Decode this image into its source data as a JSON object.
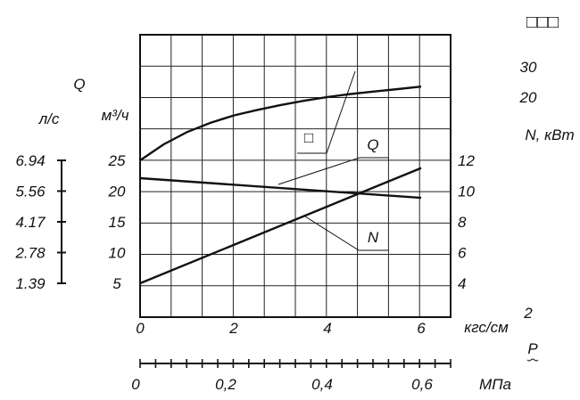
{
  "chart_data": {
    "type": "line",
    "top_right_mark": "□□□",
    "x_axis": {
      "label_kgf": "кгс/см",
      "label_kgf_sup": "2",
      "symbol": "P",
      "ticks_kgf": [
        "0",
        "2",
        "4",
        "6"
      ],
      "range_kgf": [
        0,
        6.5
      ],
      "label_mpa": "МПа",
      "ticks_mpa": [
        "0",
        "0,2",
        "0,4",
        "0,6"
      ]
    },
    "left_axis": {
      "label_Q": "Q",
      "unit_m3h": "м³/ч",
      "unit_ls": "л/с",
      "ticks_m3h": [
        "25",
        "20",
        "15",
        "10",
        "5"
      ],
      "ticks_ls": [
        "6.94",
        "5.56",
        "4.17",
        "2.78",
        "1.39"
      ]
    },
    "right_axis": {
      "unit": "N, кВт",
      "extra_ticks": [
        "30",
        "20"
      ],
      "ticks": [
        "12",
        "10",
        "8",
        "6",
        "4"
      ]
    },
    "series": [
      {
        "name": "□",
        "axis": "left",
        "x": [
          0,
          0.5,
          1,
          1.5,
          2,
          2.5,
          3,
          3.5,
          4,
          4.5,
          5,
          5.5,
          6
        ],
        "y": [
          25,
          27.6,
          29.6,
          31.1,
          32.3,
          33.2,
          34.0,
          34.7,
          35.3,
          35.8,
          36.2,
          36.6,
          37.0
        ]
      },
      {
        "name": "Q",
        "axis": "left",
        "x": [
          0,
          6
        ],
        "y": [
          22.1,
          18.9
        ]
      },
      {
        "name": "N",
        "axis": "right",
        "x": [
          0,
          6
        ],
        "y": [
          4.0,
          11.5
        ]
      }
    ],
    "grid": true
  }
}
